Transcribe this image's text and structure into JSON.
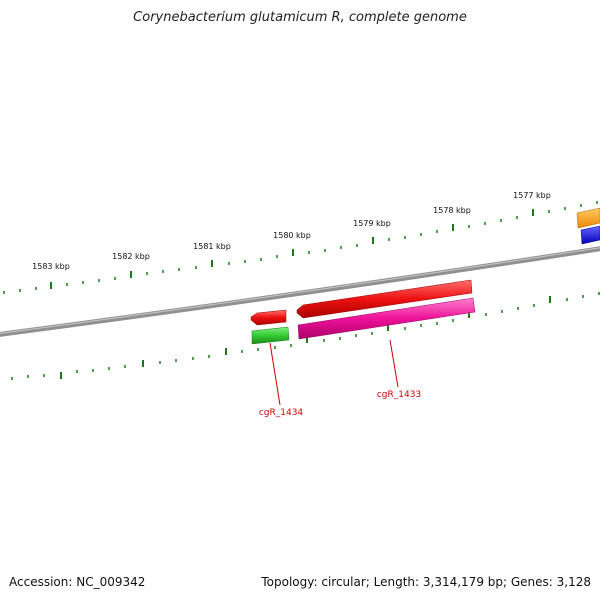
{
  "title": "Corynebacterium glutamicum R, complete genome",
  "footer": {
    "accession": "Accession: NC_009342",
    "summary": "Topology: circular; Length: 3,314,179 bp; Genes: 3,128"
  },
  "kbp_labels": [
    "1583 kbp",
    "1582 kbp",
    "1581 kbp",
    "1580 kbp",
    "1579 kbp",
    "1578 kbp",
    "1577 kbp"
  ],
  "genes": [
    {
      "label": "cgR_1434"
    },
    {
      "label": "cgR_1433"
    }
  ],
  "colors": {
    "backbone": "#808080",
    "ticks": "#1a7a1a",
    "forward_cds": "#ee1111",
    "gene_green": "#33cc33",
    "gene_pink": "#ee1199",
    "orange": "#ff9900",
    "blue": "#0000ee",
    "label_red": "#cc0000"
  }
}
